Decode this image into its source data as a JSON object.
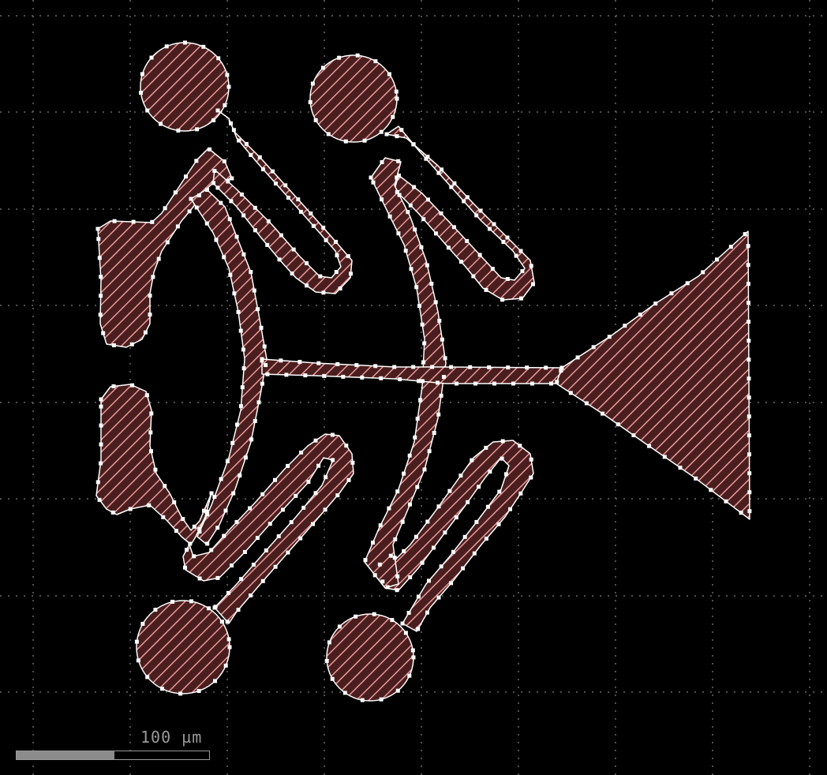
{
  "view": {
    "background": "#000000",
    "grid_color": "#6a6a6a",
    "fill_color": "#e89a9a",
    "outline_color": "#ffffff"
  },
  "scale_bar": {
    "label": "100 µm",
    "fill_fraction": 0.51,
    "bar_color": "#8c8c8c"
  },
  "layout_objects": [
    "pad-top-left",
    "pad-top-center",
    "pad-bottom-left",
    "pad-bottom-center",
    "side-electrode-upper",
    "side-electrode-lower",
    "trace-top-left",
    "trace-top-center",
    "trace-bottom-left",
    "trace-bottom-center",
    "bus-line",
    "taper-pad-right"
  ]
}
